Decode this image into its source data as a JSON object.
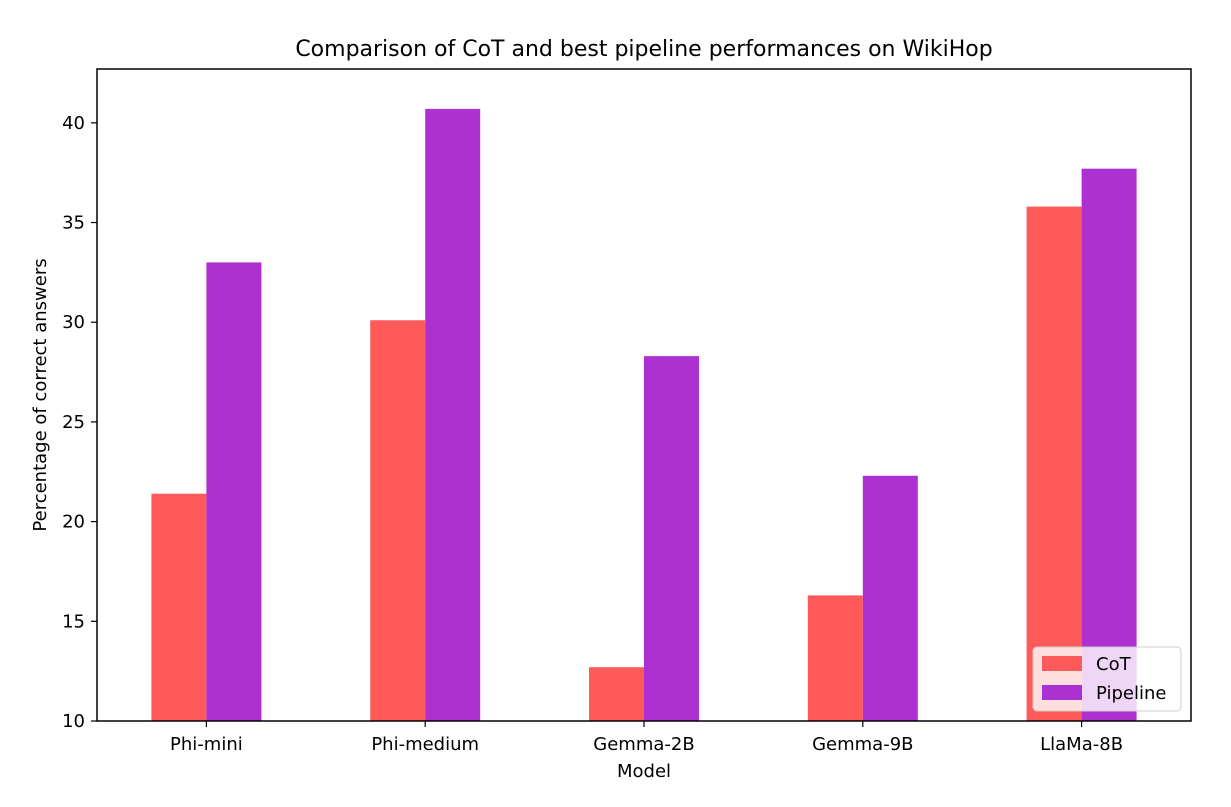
{
  "chart_data": {
    "type": "bar",
    "title": "Comparison of CoT and best pipeline performances on WikiHop",
    "xlabel": "Model",
    "ylabel": "Percentage of correct answers",
    "categories": [
      "Phi-mini",
      "Phi-medium",
      "Gemma-2B",
      "Gemma-9B",
      "LlaMa-8B"
    ],
    "series": [
      {
        "name": "CoT",
        "values": [
          21.4,
          30.1,
          12.7,
          16.3,
          35.8
        ],
        "color": "#ff5a5a"
      },
      {
        "name": "Pipeline",
        "values": [
          33.0,
          40.7,
          28.3,
          22.3,
          37.7
        ],
        "color": "#ad30d1"
      }
    ],
    "ylim": [
      10,
      42.7
    ],
    "yticks": [
      "10",
      "15",
      "20",
      "25",
      "30",
      "35",
      "40"
    ],
    "grid": false,
    "legend_position": "lower-right"
  }
}
